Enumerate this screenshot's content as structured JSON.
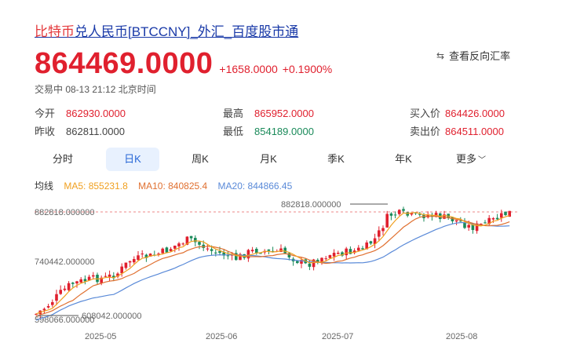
{
  "title": {
    "highlight": "比特币",
    "rest": "兑人民币[BTCCNY]_外汇_百度股市通"
  },
  "price": {
    "current": "864469.0000",
    "change": "+1658.0000",
    "change_pct": "+0.1900%",
    "trade_time": "交易中 08-13 21:12 北京时间"
  },
  "reverse": {
    "icon": "swap-icon",
    "label": "查看反向汇率"
  },
  "stats": {
    "open": {
      "label": "今开",
      "value": "862930.0000"
    },
    "prev_close": {
      "label": "昨收",
      "value": "862811.0000"
    },
    "high": {
      "label": "最高",
      "value": "865952.0000"
    },
    "low": {
      "label": "最低",
      "value": "854189.0000"
    },
    "bid": {
      "label": "买入价",
      "value": "864426.0000"
    },
    "ask": {
      "label": "卖出价",
      "value": "864511.0000"
    }
  },
  "tabs": [
    "分时",
    "日K",
    "周K",
    "月K",
    "季K",
    "年K",
    "更多"
  ],
  "active_tab": "日K",
  "ma": {
    "label": "均线",
    "ma5": "MA5: 855231.8",
    "ma10": "MA10: 840825.4",
    "ma20": "MA20: 844866.45"
  },
  "colors": {
    "up": "#e0202e",
    "down": "#1a8a5a",
    "ma5": "#f0a020",
    "ma10": "#e07030",
    "ma20": "#5a8ad8",
    "accent": "#2766d6"
  },
  "chart_data": {
    "type": "candlestick",
    "y_tick_labels": [
      "882818.000000",
      "740442.000000",
      "598066.000000"
    ],
    "max_marker": "882818.000000",
    "min_marker": "608042.000000",
    "x_tick_labels": [
      "2025-05",
      "2025-06",
      "2025-07",
      "2025-08"
    ]
  }
}
